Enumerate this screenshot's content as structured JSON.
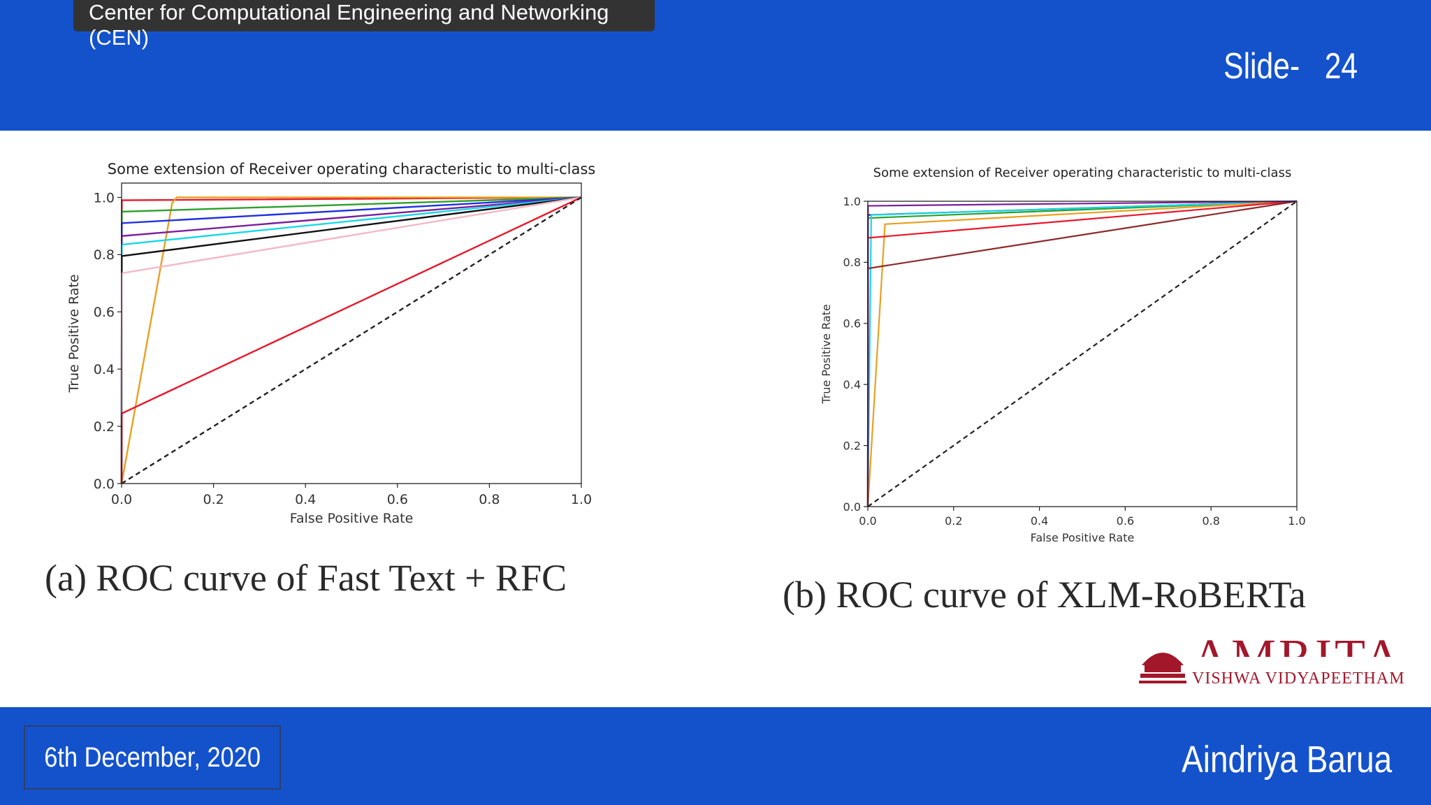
{
  "header": {
    "org_name": "Center for Computational Engineering and Networking (CEN)",
    "slide_label": "Slide-   24"
  },
  "footer": {
    "date": "6th December, 2020",
    "author": "Aindriya Barua"
  },
  "logo": {
    "word": "AMRITA",
    "subtitle": "VISHWA VIDYAPEETHAM",
    "brand_color": "#a3172b"
  },
  "captions": {
    "a": "(a) ROC curve of Fast Text + RFC",
    "b": "(b) ROC curve of XLM-RoBERTa"
  },
  "chart_data": [
    {
      "type": "line",
      "title": "Some extension of Receiver operating characteristic to multi-class",
      "xlabel": "False Positive Rate",
      "ylabel": "True Positive Rate",
      "xlim": [
        0,
        1
      ],
      "ylim": [
        0,
        1.05
      ],
      "xticks": [
        "0.0",
        "0.2",
        "0.4",
        "0.6",
        "0.8",
        "1.0"
      ],
      "yticks": [
        "0.0",
        "0.2",
        "0.4",
        "0.6",
        "0.8",
        "1.0"
      ],
      "grid": false,
      "series": [
        {
          "color": "#e8182c",
          "x": [
            0,
            0.0005,
            1
          ],
          "y": [
            0,
            0.99,
            1
          ]
        },
        {
          "color": "#e8a020",
          "x": [
            0,
            0.11,
            0.12,
            1
          ],
          "y": [
            0,
            0.98,
            1,
            1
          ]
        },
        {
          "color": "#2ca02c",
          "x": [
            0,
            0.0005,
            1
          ],
          "y": [
            0,
            0.95,
            1
          ]
        },
        {
          "color": "#2030e0",
          "x": [
            0,
            0.0005,
            1
          ],
          "y": [
            0,
            0.91,
            1
          ]
        },
        {
          "color": "#7a1f9c",
          "x": [
            0,
            0.0005,
            1
          ],
          "y": [
            0,
            0.865,
            1
          ]
        },
        {
          "color": "#19d8e8",
          "x": [
            0,
            0.0005,
            1
          ],
          "y": [
            0,
            0.835,
            1
          ]
        },
        {
          "color": "#111111",
          "x": [
            0,
            0.0005,
            1
          ],
          "y": [
            0,
            0.795,
            1
          ]
        },
        {
          "color": "#f4b8c6",
          "x": [
            0,
            0.0005,
            1
          ],
          "y": [
            0,
            0.735,
            1
          ]
        },
        {
          "color": "#e8182c",
          "x": [
            0,
            0.0005,
            1
          ],
          "y": [
            0,
            0.245,
            1
          ]
        },
        {
          "color": "#222222",
          "dash": true,
          "x": [
            0,
            1
          ],
          "y": [
            0,
            1
          ]
        }
      ]
    },
    {
      "type": "line",
      "title": "Some extension of Receiver operating characteristic to multi-class",
      "xlabel": "False Positive Rate",
      "ylabel": "True Positive Rate",
      "xlim": [
        0,
        1
      ],
      "ylim": [
        0,
        1.0
      ],
      "xticks": [
        "0.0",
        "0.2",
        "0.4",
        "0.6",
        "0.8",
        "1.0"
      ],
      "yticks": [
        "0.0",
        "0.2",
        "0.4",
        "0.6",
        "0.8",
        "1.0"
      ],
      "grid": false,
      "series": [
        {
          "color": "#1a1a6e",
          "x": [
            0,
            0.0005,
            1
          ],
          "y": [
            0,
            0.955,
            1
          ]
        },
        {
          "color": "#2ca02c",
          "x": [
            0,
            0.0005,
            1
          ],
          "y": [
            0,
            0.945,
            1
          ]
        },
        {
          "color": "#19d8e8",
          "x": [
            0,
            0.008,
            1
          ],
          "y": [
            0,
            0.955,
            1
          ]
        },
        {
          "color": "#e8a020",
          "x": [
            0,
            0.04,
            1
          ],
          "y": [
            0,
            0.925,
            1
          ]
        },
        {
          "color": "#e8182c",
          "x": [
            0,
            0.0005,
            1
          ],
          "y": [
            0,
            0.88,
            1
          ]
        },
        {
          "color": "#8b2a2a",
          "x": [
            0,
            0.0005,
            1
          ],
          "y": [
            0,
            0.78,
            1
          ]
        },
        {
          "color": "#7a1f9c",
          "x": [
            0,
            0.0005,
            1
          ],
          "y": [
            0,
            0.985,
            1
          ]
        },
        {
          "color": "#222222",
          "dash": true,
          "x": [
            0,
            1
          ],
          "y": [
            0,
            1
          ]
        }
      ]
    }
  ]
}
